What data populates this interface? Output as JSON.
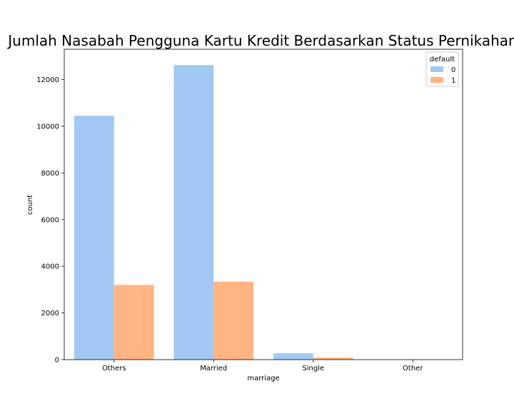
{
  "chart_data": {
    "type": "bar",
    "title": "Jumlah Nasabah Pengguna Kartu Kredit Berdasarkan Status Pernikahan",
    "xlabel": "marriage",
    "ylabel": "count",
    "categories": [
      "Others",
      "Married",
      "Single",
      "Other"
    ],
    "series": [
      {
        "name": "0",
        "values": [
          10450,
          12620,
          270,
          0
        ],
        "color": "#a1c9f4"
      },
      {
        "name": "1",
        "values": [
          3200,
          3340,
          90,
          0
        ],
        "color": "#ffb482"
      }
    ],
    "ylim": [
      0,
      13300
    ],
    "yticks": [
      0,
      2000,
      4000,
      6000,
      8000,
      10000,
      12000
    ],
    "grid": false,
    "legend": {
      "title": "default",
      "placement": "top-right"
    }
  }
}
